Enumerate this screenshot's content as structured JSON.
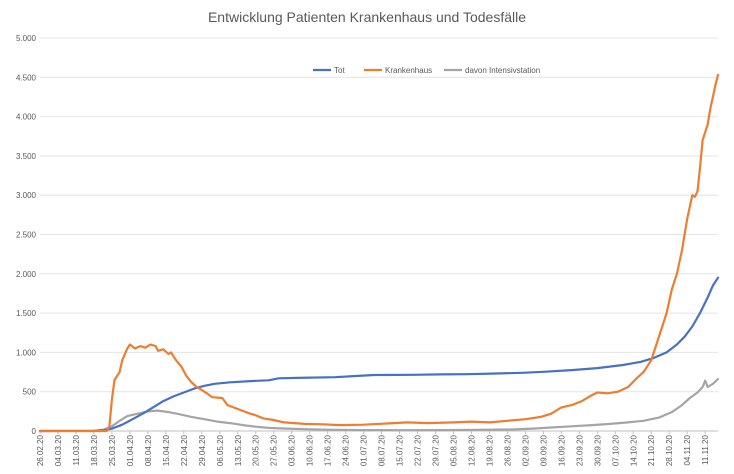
{
  "chart_data": {
    "type": "line",
    "title": "Entwicklung Patienten Krankenhaus und Todesfälle",
    "xlabel": "",
    "ylabel": "",
    "ylim": [
      0,
      5000
    ],
    "yticks": [
      0,
      500,
      1000,
      1500,
      2000,
      2500,
      3000,
      3500,
      4000,
      4500,
      5000
    ],
    "ytick_labels": [
      "0",
      "500",
      "1.000",
      "1.500",
      "2.000",
      "2.500",
      "3.000",
      "3.500",
      "4.000",
      "4.500",
      "5.000"
    ],
    "xlim": [
      "2020-02-26",
      "2020-11-16"
    ],
    "xtick_dates": [
      "2020-02-26",
      "2020-03-04",
      "2020-03-11",
      "2020-03-18",
      "2020-03-25",
      "2020-04-01",
      "2020-04-08",
      "2020-04-15",
      "2020-04-22",
      "2020-04-29",
      "2020-05-06",
      "2020-05-13",
      "2020-05-20",
      "2020-05-27",
      "2020-06-03",
      "2020-06-10",
      "2020-06-17",
      "2020-06-24",
      "2020-07-01",
      "2020-07-08",
      "2020-07-15",
      "2020-07-22",
      "2020-07-29",
      "2020-08-05",
      "2020-08-12",
      "2020-08-19",
      "2020-08-26",
      "2020-09-02",
      "2020-09-09",
      "2020-09-16",
      "2020-09-23",
      "2020-09-30",
      "2020-10-07",
      "2020-10-14",
      "2020-10-21",
      "2020-10-28",
      "2020-11-04",
      "2020-11-11"
    ],
    "xtick_labels": [
      "26.02.20",
      "04.03.20",
      "11.03.20",
      "18.03.20",
      "25.03.20",
      "01.04.20",
      "08.04.20",
      "15.04.20",
      "22.04.20",
      "29.04.20",
      "06.05.20",
      "13.05.20",
      "20.05.20",
      "27.05.20",
      "03.06.20",
      "10.06.20",
      "17.06.20",
      "24.06.20",
      "01.07.20",
      "08.07.20",
      "15.07.20",
      "22.07.20",
      "29.07.20",
      "05.08.20",
      "12.08.20",
      "19.08.20",
      "26.08.20",
      "02.09.20",
      "09.09.20",
      "16.09.20",
      "23.09.20",
      "30.09.20",
      "07.10.20",
      "14.10.20",
      "21.10.20",
      "28.10.20",
      "04.11.20",
      "11.11.20"
    ],
    "grid": true,
    "legend_position": "top",
    "series": [
      {
        "name": "Tot",
        "color": "#4472c4",
        "points": [
          [
            "2020-02-26",
            0
          ],
          [
            "2020-03-18",
            2
          ],
          [
            "2020-03-22",
            10
          ],
          [
            "2020-03-25",
            30
          ],
          [
            "2020-03-29",
            80
          ],
          [
            "2020-04-02",
            150
          ],
          [
            "2020-04-06",
            220
          ],
          [
            "2020-04-10",
            300
          ],
          [
            "2020-04-14",
            380
          ],
          [
            "2020-04-18",
            440
          ],
          [
            "2020-04-22",
            490
          ],
          [
            "2020-04-26",
            540
          ],
          [
            "2020-04-30",
            575
          ],
          [
            "2020-05-04",
            600
          ],
          [
            "2020-05-10",
            620
          ],
          [
            "2020-05-18",
            635
          ],
          [
            "2020-05-25",
            645
          ],
          [
            "2020-05-29",
            670
          ],
          [
            "2020-06-05",
            675
          ],
          [
            "2020-06-20",
            685
          ],
          [
            "2020-06-28",
            700
          ],
          [
            "2020-07-05",
            712
          ],
          [
            "2020-07-20",
            715
          ],
          [
            "2020-07-31",
            720
          ],
          [
            "2020-08-10",
            723
          ],
          [
            "2020-08-20",
            730
          ],
          [
            "2020-09-01",
            740
          ],
          [
            "2020-09-10",
            755
          ],
          [
            "2020-09-20",
            775
          ],
          [
            "2020-09-30",
            800
          ],
          [
            "2020-10-10",
            840
          ],
          [
            "2020-10-17",
            880
          ],
          [
            "2020-10-22",
            930
          ],
          [
            "2020-10-27",
            1000
          ],
          [
            "2020-10-31",
            1100
          ],
          [
            "2020-11-03",
            1200
          ],
          [
            "2020-11-06",
            1330
          ],
          [
            "2020-11-09",
            1500
          ],
          [
            "2020-11-12",
            1700
          ],
          [
            "2020-11-14",
            1850
          ],
          [
            "2020-11-16",
            1950
          ]
        ]
      },
      {
        "name": "Krankenhaus",
        "color": "#ed7d31",
        "points": [
          [
            "2020-02-26",
            0
          ],
          [
            "2020-03-23",
            0
          ],
          [
            "2020-03-24",
            50
          ],
          [
            "2020-03-25",
            400
          ],
          [
            "2020-03-26",
            650
          ],
          [
            "2020-03-28",
            750
          ],
          [
            "2020-03-29",
            900
          ],
          [
            "2020-03-31",
            1050
          ],
          [
            "2020-04-01",
            1100
          ],
          [
            "2020-04-03",
            1050
          ],
          [
            "2020-04-05",
            1080
          ],
          [
            "2020-04-07",
            1060
          ],
          [
            "2020-04-09",
            1100
          ],
          [
            "2020-04-11",
            1080
          ],
          [
            "2020-04-12",
            1020
          ],
          [
            "2020-04-14",
            1040
          ],
          [
            "2020-04-16",
            980
          ],
          [
            "2020-04-17",
            1000
          ],
          [
            "2020-04-19",
            900
          ],
          [
            "2020-04-21",
            820
          ],
          [
            "2020-04-23",
            700
          ],
          [
            "2020-04-25",
            620
          ],
          [
            "2020-04-27",
            560
          ],
          [
            "2020-04-29",
            520
          ],
          [
            "2020-05-01",
            480
          ],
          [
            "2020-05-03",
            430
          ],
          [
            "2020-05-07",
            420
          ],
          [
            "2020-05-09",
            330
          ],
          [
            "2020-05-13",
            280
          ],
          [
            "2020-05-17",
            230
          ],
          [
            "2020-05-20",
            200
          ],
          [
            "2020-05-23",
            160
          ],
          [
            "2020-05-27",
            140
          ],
          [
            "2020-05-31",
            110
          ],
          [
            "2020-06-04",
            100
          ],
          [
            "2020-06-08",
            90
          ],
          [
            "2020-06-15",
            85
          ],
          [
            "2020-06-22",
            75
          ],
          [
            "2020-07-01",
            80
          ],
          [
            "2020-07-10",
            95
          ],
          [
            "2020-07-18",
            110
          ],
          [
            "2020-07-26",
            100
          ],
          [
            "2020-08-05",
            110
          ],
          [
            "2020-08-12",
            120
          ],
          [
            "2020-08-19",
            110
          ],
          [
            "2020-08-26",
            130
          ],
          [
            "2020-09-02",
            150
          ],
          [
            "2020-09-08",
            180
          ],
          [
            "2020-09-12",
            220
          ],
          [
            "2020-09-16",
            300
          ],
          [
            "2020-09-20",
            330
          ],
          [
            "2020-09-24",
            380
          ],
          [
            "2020-09-27",
            440
          ],
          [
            "2020-09-30",
            490
          ],
          [
            "2020-10-04",
            480
          ],
          [
            "2020-10-08",
            500
          ],
          [
            "2020-10-12",
            560
          ],
          [
            "2020-10-15",
            660
          ],
          [
            "2020-10-18",
            750
          ],
          [
            "2020-10-21",
            900
          ],
          [
            "2020-10-23",
            1100
          ],
          [
            "2020-10-25",
            1300
          ],
          [
            "2020-10-27",
            1500
          ],
          [
            "2020-10-29",
            1800
          ],
          [
            "2020-10-31",
            2000
          ],
          [
            "2020-11-02",
            2300
          ],
          [
            "2020-11-04",
            2700
          ],
          [
            "2020-11-06",
            3000
          ],
          [
            "2020-11-07",
            2980
          ],
          [
            "2020-11-08",
            3050
          ],
          [
            "2020-11-09",
            3350
          ],
          [
            "2020-11-10",
            3700
          ],
          [
            "2020-11-12",
            3900
          ],
          [
            "2020-11-13",
            4100
          ],
          [
            "2020-11-14",
            4250
          ],
          [
            "2020-11-15",
            4400
          ],
          [
            "2020-11-16",
            4530
          ]
        ]
      },
      {
        "name": "davon Intensivstation",
        "color": "#a5a5a5",
        "points": [
          [
            "2020-02-26",
            0
          ],
          [
            "2020-03-18",
            0
          ],
          [
            "2020-03-22",
            20
          ],
          [
            "2020-03-25",
            60
          ],
          [
            "2020-03-28",
            130
          ],
          [
            "2020-03-31",
            190
          ],
          [
            "2020-04-04",
            220
          ],
          [
            "2020-04-08",
            250
          ],
          [
            "2020-04-12",
            260
          ],
          [
            "2020-04-16",
            240
          ],
          [
            "2020-04-20",
            215
          ],
          [
            "2020-04-25",
            180
          ],
          [
            "2020-04-30",
            150
          ],
          [
            "2020-05-05",
            120
          ],
          [
            "2020-05-10",
            100
          ],
          [
            "2020-05-15",
            75
          ],
          [
            "2020-05-20",
            55
          ],
          [
            "2020-05-25",
            40
          ],
          [
            "2020-06-01",
            30
          ],
          [
            "2020-06-10",
            22
          ],
          [
            "2020-06-20",
            15
          ],
          [
            "2020-07-01",
            12
          ],
          [
            "2020-07-15",
            10
          ],
          [
            "2020-08-01",
            12
          ],
          [
            "2020-08-15",
            15
          ],
          [
            "2020-08-29",
            20
          ],
          [
            "2020-09-05",
            30
          ],
          [
            "2020-09-12",
            45
          ],
          [
            "2020-09-20",
            60
          ],
          [
            "2020-09-28",
            75
          ],
          [
            "2020-10-05",
            90
          ],
          [
            "2020-10-12",
            110
          ],
          [
            "2020-10-18",
            130
          ],
          [
            "2020-10-24",
            170
          ],
          [
            "2020-10-29",
            240
          ],
          [
            "2020-11-02",
            330
          ],
          [
            "2020-11-05",
            420
          ],
          [
            "2020-11-08",
            490
          ],
          [
            "2020-11-10",
            560
          ],
          [
            "2020-11-11",
            640
          ],
          [
            "2020-11-12",
            560
          ],
          [
            "2020-11-14",
            600
          ],
          [
            "2020-11-16",
            660
          ]
        ]
      }
    ]
  }
}
